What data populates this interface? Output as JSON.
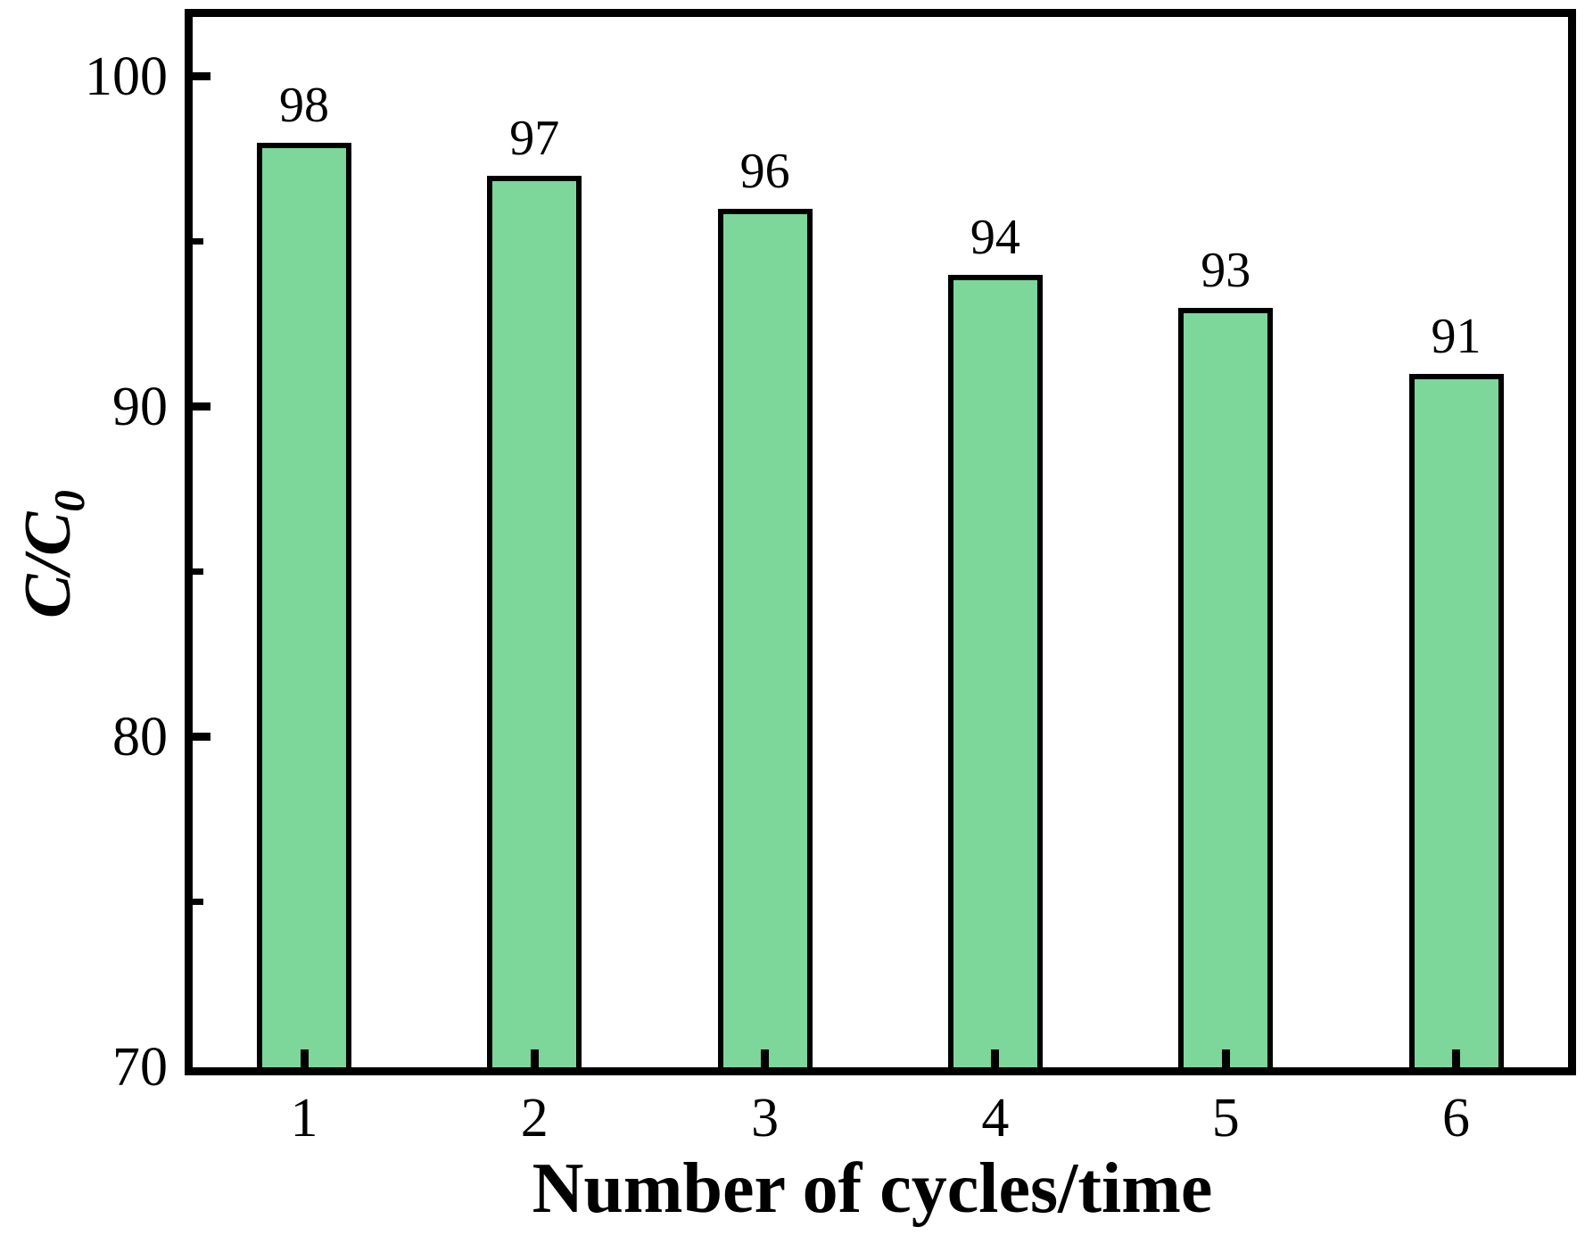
{
  "chart_data": {
    "type": "bar",
    "title": "",
    "xlabel": "Number of cycles/time",
    "ylabel": {
      "base": "C/C",
      "subscript": "0"
    },
    "categories": [
      "1",
      "2",
      "3",
      "4",
      "5",
      "6"
    ],
    "values": [
      98,
      97,
      96,
      94,
      93,
      91
    ],
    "bar_labels": [
      "98",
      "97",
      "96",
      "94",
      "93",
      "91"
    ],
    "ylim": [
      70,
      101.8
    ],
    "yticks_major": [
      100,
      90,
      80,
      70
    ],
    "yticks_minor": [
      95,
      85,
      75
    ],
    "grid": "off",
    "legend": "none",
    "colors": {
      "bar_fill": "#7dd69a",
      "bar_edge": "#000000",
      "axis": "#000000",
      "text": "#000000",
      "background": "#ffffff"
    }
  }
}
